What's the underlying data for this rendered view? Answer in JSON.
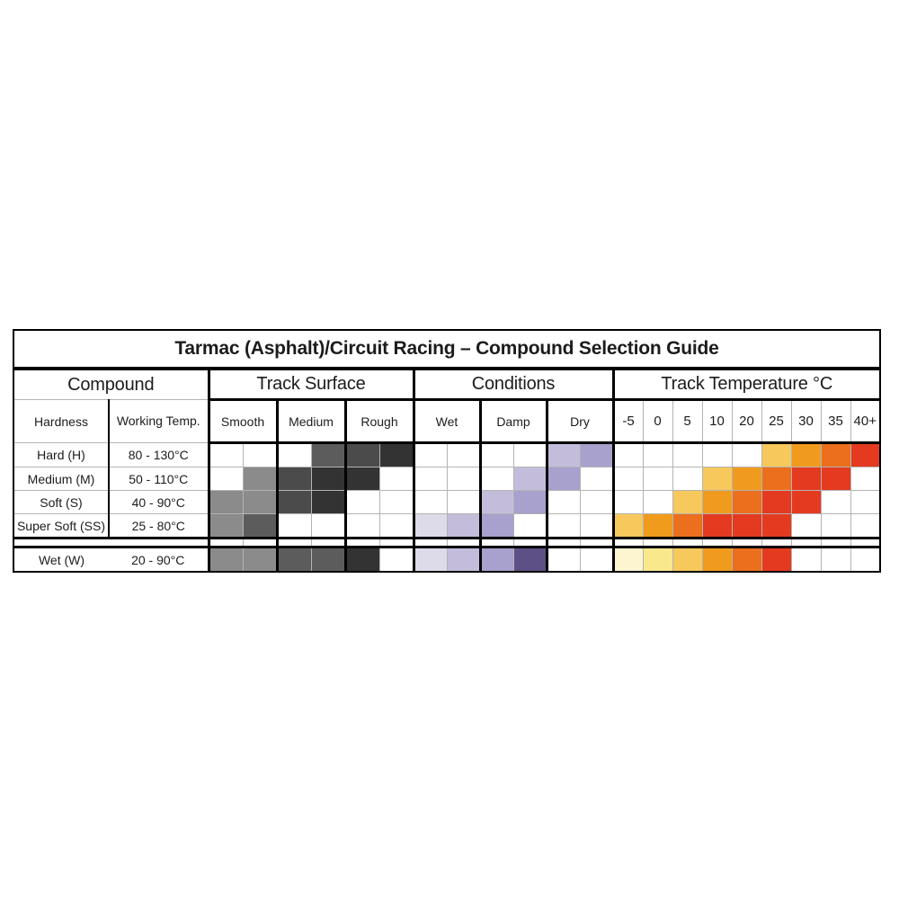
{
  "title": "Tarmac (Asphalt)/Circuit Racing – Compound Selection Guide",
  "groups": {
    "compound": "Compound",
    "surface": "Track Surface",
    "conditions": "Conditions",
    "temperature": "Track Temperature °C"
  },
  "subheaders": {
    "hardness": "Hardness",
    "working_temp": "Working Temp.",
    "surface": [
      "Smooth",
      "Medium",
      "Rough"
    ],
    "conditions": [
      "Wet",
      "Damp",
      "Dry"
    ],
    "temps": [
      "-5",
      "0",
      "5",
      "10",
      "20",
      "25",
      "30",
      "35",
      "40+"
    ]
  },
  "chart_data": {
    "type": "table",
    "title": "Tarmac (Asphalt)/Circuit Racing – Compound Selection Guide",
    "column_groups": [
      "Compound",
      "Track Surface",
      "Conditions",
      "Track Temperature °C"
    ],
    "surface_columns": [
      "Smooth",
      "Medium",
      "Rough"
    ],
    "surface_note": "each surface/condition column is split into two half-cells",
    "condition_columns": [
      "Wet",
      "Damp",
      "Dry"
    ],
    "temp_columns": [
      "-5",
      "0",
      "5",
      "10",
      "20",
      "25",
      "30",
      "35",
      "40+"
    ],
    "palette": {
      "g1": "#8B8B8B",
      "g2": "#5C5C5C",
      "g3": "#4B4B4B",
      "g4": "#333333",
      "p1": "#DDDAE9",
      "p2": "#C3BDDB",
      "p3": "#A8A0CD",
      "p4": "#5D5086",
      "t1": "#FCF5CF",
      "t2": "#FAE88C",
      "t3": "#F7C95C",
      "t4": "#F09B1E",
      "t5": "#EB6F1D",
      "t6": "#E43A20"
    },
    "rows": [
      {
        "key": "hard",
        "label": "Hard (H)",
        "working_temp": "80 - 130°C",
        "surface": [
          null,
          null,
          null,
          "g2",
          "g3",
          "g4"
        ],
        "conditions": [
          null,
          null,
          null,
          null,
          "p2",
          "p3"
        ],
        "temps": [
          null,
          null,
          null,
          null,
          null,
          "t3",
          "t4",
          "t5",
          "t6"
        ]
      },
      {
        "key": "medium",
        "label": "Medium (M)",
        "working_temp": "50 - 110°C",
        "surface": [
          null,
          "g1",
          "g3",
          "g4",
          "g4",
          null
        ],
        "conditions": [
          null,
          null,
          null,
          "p2",
          "p3",
          null
        ],
        "temps": [
          null,
          null,
          null,
          "t3",
          "t4",
          "t5",
          "t6",
          "t6",
          null
        ]
      },
      {
        "key": "soft",
        "label": "Soft (S)",
        "working_temp": "40 - 90°C",
        "surface": [
          "g1",
          "g1",
          "g3",
          "g4",
          null,
          null
        ],
        "conditions": [
          null,
          null,
          "p2",
          "p3",
          null,
          null
        ],
        "temps": [
          null,
          null,
          "t3",
          "t4",
          "t5",
          "t6",
          "t6",
          null,
          null
        ]
      },
      {
        "key": "super-soft",
        "label": "Super Soft (SS)",
        "working_temp": "25 - 80°C",
        "surface": [
          "g1",
          "g2",
          null,
          null,
          null,
          null
        ],
        "conditions": [
          "p1",
          "p2",
          "p3",
          null,
          null,
          null
        ],
        "temps": [
          "t3",
          "t4",
          "t5",
          "t6",
          "t6",
          "t6",
          null,
          null,
          null
        ]
      },
      {
        "key": "wet",
        "label": "Wet (W)",
        "working_temp": "20 - 90°C",
        "separator_before": true,
        "no_divider": true,
        "surface": [
          "g1",
          "g1",
          "g2",
          "g2",
          "g4",
          null
        ],
        "conditions": [
          "p1",
          "p2",
          "p3",
          "p4",
          null,
          null
        ],
        "temps": [
          "t1",
          "t2",
          "t3",
          "t4",
          "t5",
          "t6",
          null,
          null,
          null
        ]
      }
    ]
  }
}
